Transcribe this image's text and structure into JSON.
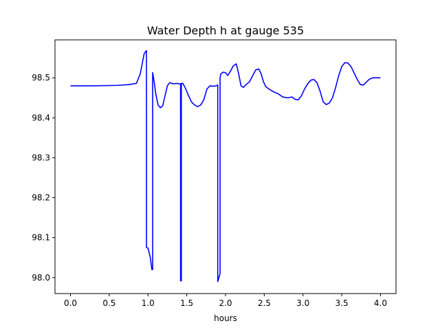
{
  "chart_data": {
    "type": "line",
    "title": "Water Depth h at gauge 535",
    "xlabel": "hours",
    "ylabel": "",
    "xlim": [
      -0.2,
      4.2
    ],
    "ylim": [
      97.96,
      98.595
    ],
    "xticks": [
      0.0,
      0.5,
      1.0,
      1.5,
      2.0,
      2.5,
      3.0,
      3.5,
      4.0
    ],
    "xtick_labels": [
      "0.0",
      "0.5",
      "1.0",
      "1.5",
      "2.0",
      "2.5",
      "3.0",
      "3.5",
      "4.0"
    ],
    "yticks": [
      98.0,
      98.1,
      98.2,
      98.3,
      98.4,
      98.5
    ],
    "ytick_labels": [
      "98.0",
      "98.1",
      "98.2",
      "98.3",
      "98.4",
      "98.5"
    ],
    "grid": false,
    "series": [
      {
        "name": "",
        "color": "#0000ff",
        "x": [
          0.0,
          0.3,
          0.6,
          0.75,
          0.85,
          0.9,
          0.93,
          0.95,
          0.97,
          0.98,
          0.98,
          1.0,
          1.03,
          1.05,
          1.06,
          1.06,
          1.08,
          1.1,
          1.13,
          1.16,
          1.19,
          1.22,
          1.25,
          1.28,
          1.31,
          1.34,
          1.37,
          1.4,
          1.42,
          1.42,
          1.43,
          1.43,
          1.45,
          1.48,
          1.52,
          1.56,
          1.6,
          1.64,
          1.68,
          1.72,
          1.76,
          1.8,
          1.84,
          1.88,
          1.9,
          1.9,
          1.93,
          1.93,
          1.94,
          1.97,
          2.0,
          2.03,
          2.06,
          2.1,
          2.14,
          2.17,
          2.2,
          2.23,
          2.27,
          2.31,
          2.35,
          2.39,
          2.43,
          2.46,
          2.49,
          2.52,
          2.56,
          2.62,
          2.68,
          2.74,
          2.8,
          2.86,
          2.9,
          2.94,
          2.98,
          3.02,
          3.06,
          3.1,
          3.14,
          3.18,
          3.22,
          3.26,
          3.3,
          3.34,
          3.38,
          3.42,
          3.46,
          3.5,
          3.54,
          3.58,
          3.62,
          3.66,
          3.7,
          3.74,
          3.78,
          3.82,
          3.86,
          3.9,
          3.95,
          4.0
        ],
        "y": [
          98.48,
          98.48,
          98.481,
          98.483,
          98.486,
          98.51,
          98.54,
          98.56,
          98.566,
          98.568,
          98.075,
          98.074,
          98.05,
          98.02,
          98.02,
          98.513,
          98.49,
          98.46,
          98.432,
          98.425,
          98.43,
          98.455,
          98.48,
          98.488,
          98.486,
          98.485,
          98.486,
          98.485,
          98.485,
          97.992,
          97.992,
          98.486,
          98.486,
          98.475,
          98.457,
          98.44,
          98.432,
          98.428,
          98.432,
          98.445,
          98.472,
          98.48,
          98.479,
          98.48,
          98.482,
          97.99,
          98.01,
          98.5,
          98.51,
          98.514,
          98.513,
          98.506,
          98.515,
          98.53,
          98.535,
          98.51,
          98.48,
          98.476,
          98.484,
          98.49,
          98.505,
          98.52,
          98.522,
          98.51,
          98.49,
          98.478,
          98.472,
          98.465,
          98.46,
          98.452,
          98.45,
          98.452,
          98.446,
          98.445,
          98.455,
          98.472,
          98.485,
          98.494,
          98.496,
          98.488,
          98.467,
          98.44,
          98.433,
          98.437,
          98.45,
          98.475,
          98.505,
          98.528,
          98.538,
          98.537,
          98.528,
          98.512,
          98.496,
          98.483,
          98.482,
          98.49,
          98.497,
          98.5,
          98.5,
          98.5
        ]
      }
    ]
  }
}
